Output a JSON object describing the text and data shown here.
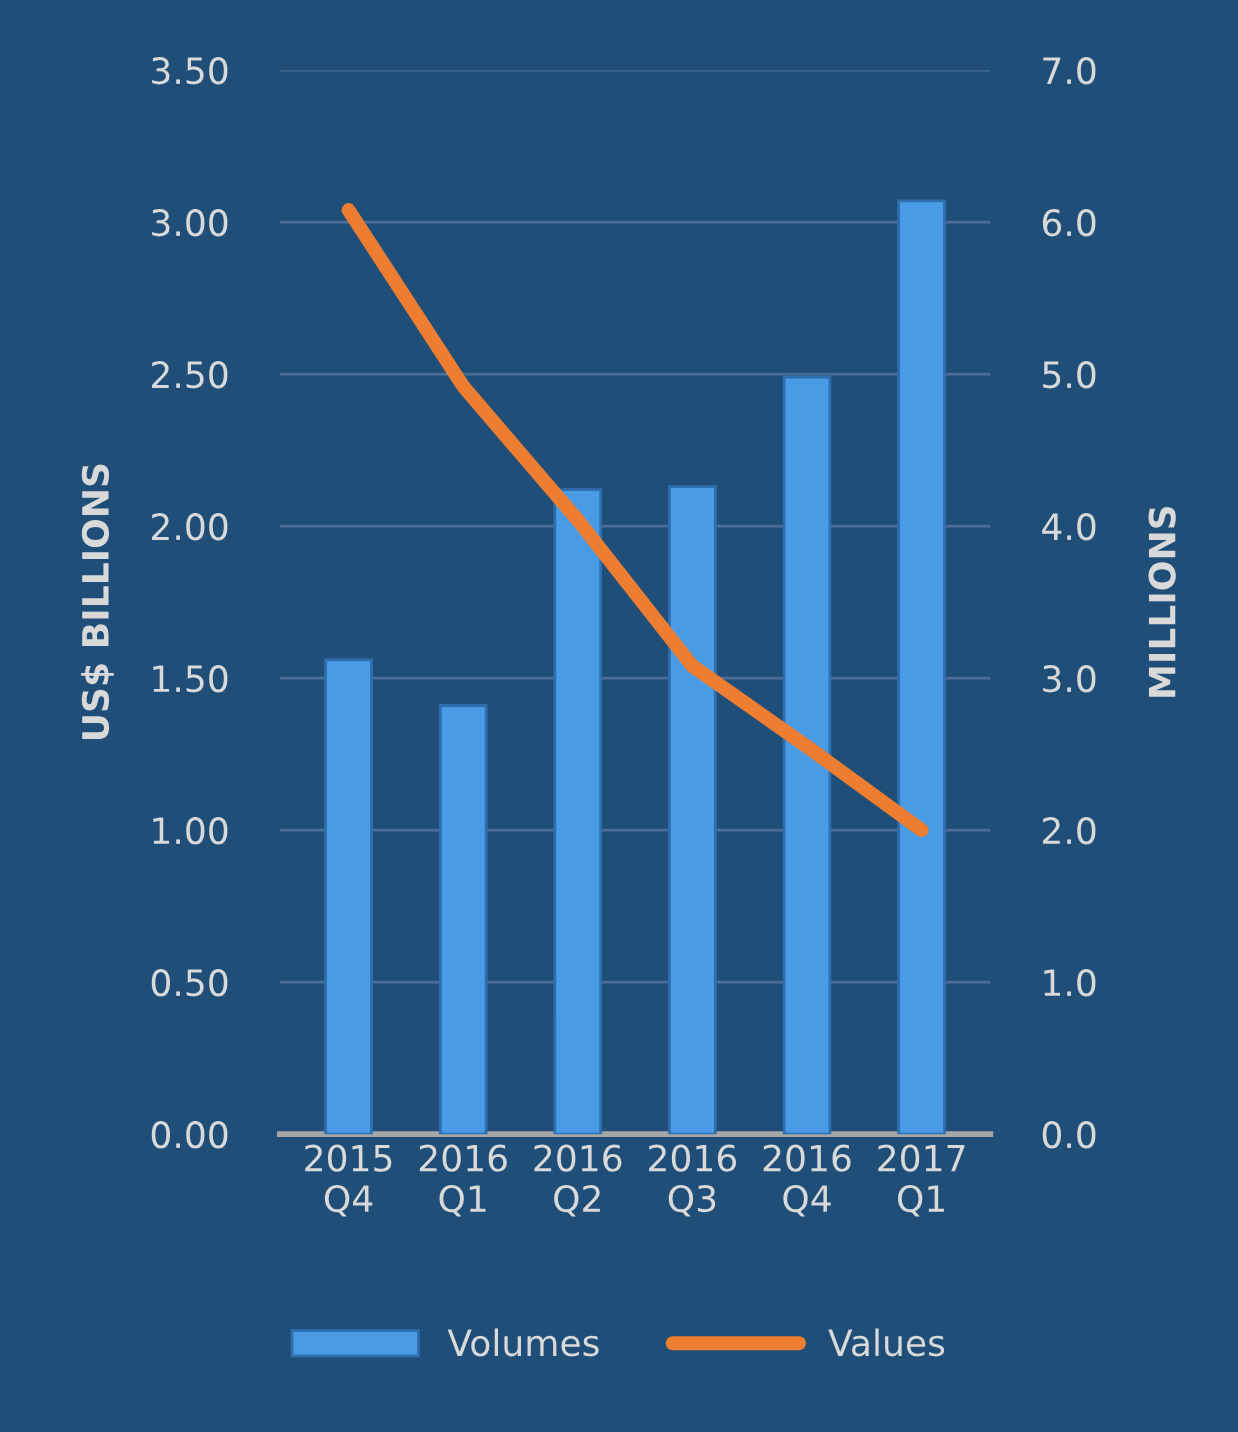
{
  "chart_data": {
    "type": "bar",
    "categories": [
      "2015\nQ4",
      "2016\nQ1",
      "2016\nQ2",
      "2016\nQ3",
      "2016\nQ4",
      "2017\nQ1"
    ],
    "series": [
      {
        "name": "Volumes",
        "color": "#4a9be6",
        "values": [
          1.56,
          1.41,
          2.12,
          2.13,
          2.49,
          3.07
        ]
      },
      {
        "name": "Values",
        "type": "line",
        "axis": "y2",
        "color": "#ed7d31",
        "values": [
          6.08,
          4.92,
          4.04,
          3.08,
          2.55,
          2.0
        ]
      }
    ],
    "ylabel": "US$ BILLIONS",
    "y2label": "MILLIONS",
    "ylim": [
      0,
      3.5
    ],
    "yticks": [
      {
        "value": 0,
        "label": "0.00"
      },
      {
        "value": 0.5,
        "label": "0.50"
      },
      {
        "value": 1,
        "label": "1.00"
      },
      {
        "value": 1.5,
        "label": "1.50"
      },
      {
        "value": 2,
        "label": "2.00"
      },
      {
        "value": 2.5,
        "label": "2.50"
      },
      {
        "value": 3,
        "label": "3.00"
      },
      {
        "value": 3.5,
        "label": "3.50"
      }
    ],
    "y2lim": [
      0,
      7
    ],
    "y2ticks": [
      {
        "value": 0,
        "label": "0.0"
      },
      {
        "value": 1,
        "label": "1.0"
      },
      {
        "value": 2,
        "label": "2.0"
      },
      {
        "value": 3,
        "label": "3.0"
      },
      {
        "value": 4,
        "label": "4.0"
      },
      {
        "value": 5,
        "label": "5.0"
      },
      {
        "value": 6,
        "label": "6.0"
      },
      {
        "value": 7,
        "label": "7.0"
      }
    ],
    "grid": "y",
    "legend": "bottom",
    "marker": "none",
    "line_style": "solid"
  }
}
